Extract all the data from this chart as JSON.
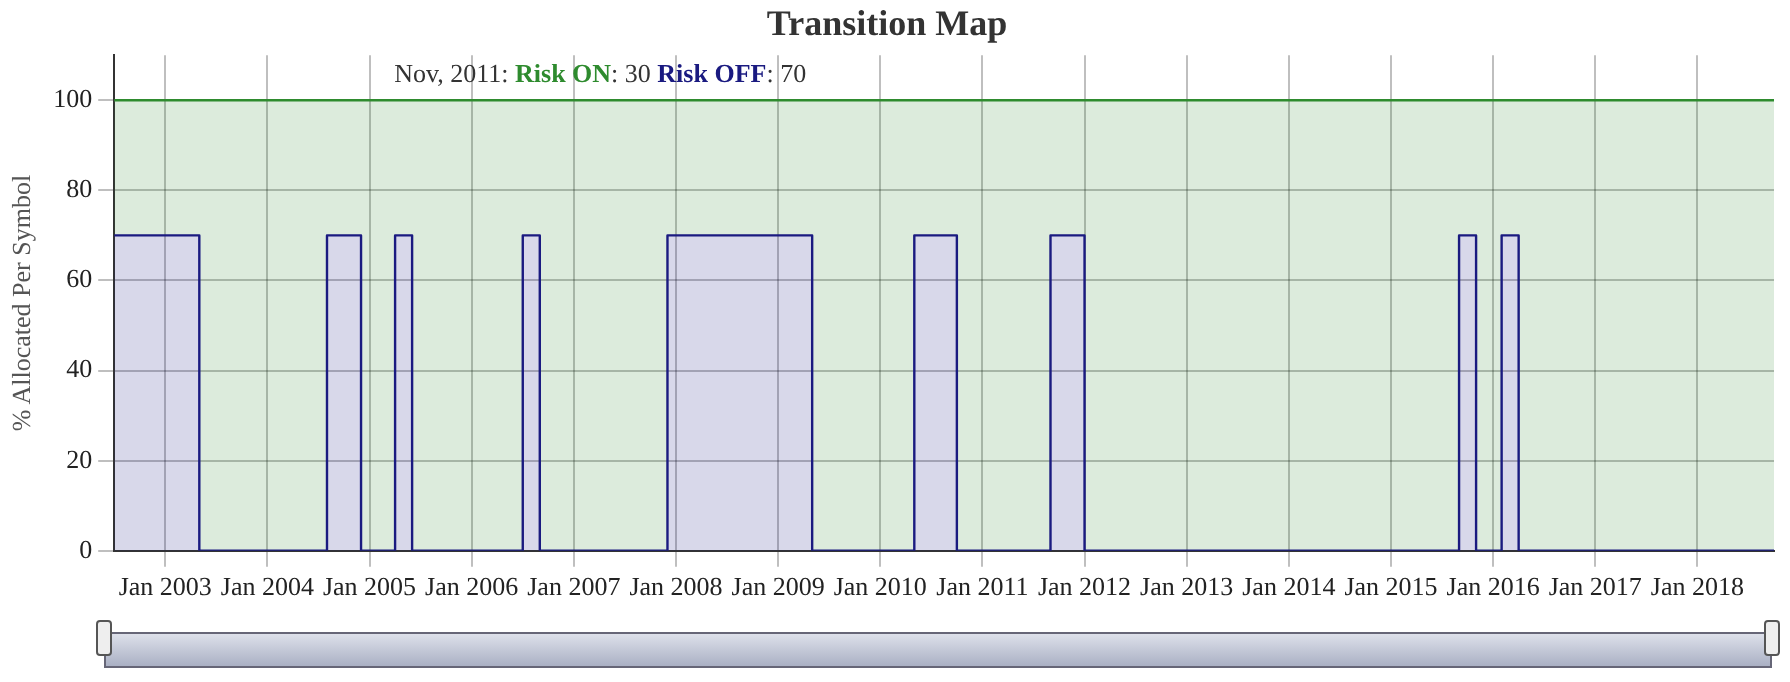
{
  "chart_data": {
    "type": "area",
    "title": "Transition Map",
    "ylabel": "% Allocated Per Symbol",
    "annotations": [
      "Nov, 2011:",
      ": 30",
      ": 70"
    ],
    "x": [
      "2002-07",
      "2003-05",
      "2003-05",
      "2004-08",
      "2004-08",
      "2004-12",
      "2004-12",
      "2005-04",
      "2005-04",
      "2005-06",
      "2005-06",
      "2006-07",
      "2006-07",
      "2006-09",
      "2006-09",
      "2007-12",
      "2007-12",
      "2009-05",
      "2009-05",
      "2010-05",
      "2010-05",
      "2010-10",
      "2010-10",
      "2011-09",
      "2011-09",
      "2012-01",
      "2012-01",
      "2015-09",
      "2015-09",
      "2015-11",
      "2015-11",
      "2016-02",
      "2016-02",
      "2016-04",
      "2016-04",
      "2018-10"
    ],
    "series": [
      {
        "name": "Risk OFF",
        "color": "#1a1a80",
        "values": [
          70,
          70,
          0,
          0,
          70,
          70,
          0,
          0,
          70,
          70,
          0,
          0,
          70,
          70,
          0,
          0,
          70,
          70,
          0,
          0,
          70,
          70,
          0,
          0,
          70,
          70,
          0,
          0,
          70,
          70,
          0,
          0,
          70,
          70,
          0,
          0
        ]
      },
      {
        "name": "Risk ON",
        "color": "#2e8b2e",
        "values": [
          30,
          30,
          100,
          100,
          30,
          30,
          100,
          100,
          30,
          30,
          100,
          100,
          30,
          30,
          100,
          100,
          30,
          30,
          100,
          100,
          30,
          30,
          100,
          100,
          30,
          30,
          100,
          100,
          30,
          30,
          100,
          100,
          30,
          30,
          100,
          100
        ]
      }
    ],
    "stacked": true,
    "xlim": [
      "2002-07",
      "2018-10"
    ],
    "xticks": [
      {
        "value": "2003-01",
        "label": "Jan 2003"
      },
      {
        "value": "2004-01",
        "label": "Jan 2004"
      },
      {
        "value": "2005-01",
        "label": "Jan 2005"
      },
      {
        "value": "2006-01",
        "label": "Jan 2006"
      },
      {
        "value": "2007-01",
        "label": "Jan 2007"
      },
      {
        "value": "2008-01",
        "label": "Jan 2008"
      },
      {
        "value": "2009-01",
        "label": "Jan 2009"
      },
      {
        "value": "2010-01",
        "label": "Jan 2010"
      },
      {
        "value": "2011-01",
        "label": "Jan 2011"
      },
      {
        "value": "2012-01",
        "label": "Jan 2012"
      },
      {
        "value": "2013-01",
        "label": "Jan 2013"
      },
      {
        "value": "2014-01",
        "label": "Jan 2014"
      },
      {
        "value": "2015-01",
        "label": "Jan 2015"
      },
      {
        "value": "2016-01",
        "label": "Jan 2016"
      },
      {
        "value": "2017-01",
        "label": "Jan 2017"
      },
      {
        "value": "2018-01",
        "label": "Jan 2018"
      }
    ],
    "ylim": [
      0,
      110
    ],
    "yticks": [
      0,
      20,
      40,
      60,
      80,
      100
    ],
    "grid": true
  }
}
